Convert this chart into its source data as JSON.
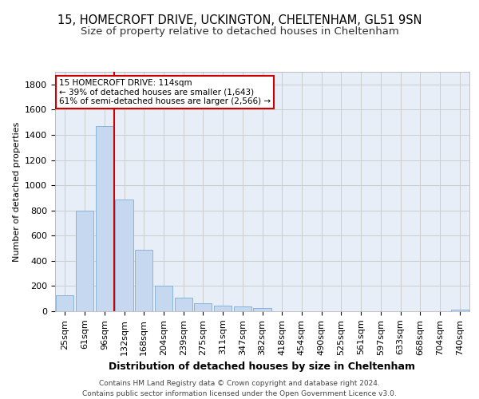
{
  "title1": "15, HOMECROFT DRIVE, UCKINGTON, CHELTENHAM, GL51 9SN",
  "title2": "Size of property relative to detached houses in Cheltenham",
  "xlabel": "Distribution of detached houses by size in Cheltenham",
  "ylabel": "Number of detached properties",
  "categories": [
    "25sqm",
    "61sqm",
    "96sqm",
    "132sqm",
    "168sqm",
    "204sqm",
    "239sqm",
    "275sqm",
    "311sqm",
    "347sqm",
    "382sqm",
    "418sqm",
    "454sqm",
    "490sqm",
    "525sqm",
    "561sqm",
    "597sqm",
    "633sqm",
    "668sqm",
    "704sqm",
    "740sqm"
  ],
  "values": [
    125,
    800,
    1470,
    885,
    490,
    205,
    105,
    65,
    45,
    35,
    25,
    2,
    2,
    2,
    2,
    2,
    2,
    2,
    2,
    2,
    10
  ],
  "bar_color": "#c5d8f0",
  "bar_edge_color": "#7aaed6",
  "vline_color": "#cc0000",
  "vline_x_index": 2.5,
  "annotation_line1": "15 HOMECROFT DRIVE: 114sqm",
  "annotation_line2": "← 39% of detached houses are smaller (1,643)",
  "annotation_line3": "61% of semi-detached houses are larger (2,566) →",
  "annotation_box_color": "#ffffff",
  "annotation_box_edge": "#cc0000",
  "footnote": "Contains HM Land Registry data © Crown copyright and database right 2024.\nContains public sector information licensed under the Open Government Licence v3.0.",
  "ylim": [
    0,
    1900
  ],
  "yticks": [
    0,
    200,
    400,
    600,
    800,
    1000,
    1200,
    1400,
    1600,
    1800
  ],
  "grid_color": "#cccccc",
  "plot_bg_color": "#e8eef8",
  "fig_bg_color": "#ffffff",
  "title1_fontsize": 10.5,
  "title2_fontsize": 9.5,
  "xlabel_fontsize": 9,
  "ylabel_fontsize": 8,
  "tick_fontsize": 8,
  "footnote_fontsize": 6.5
}
